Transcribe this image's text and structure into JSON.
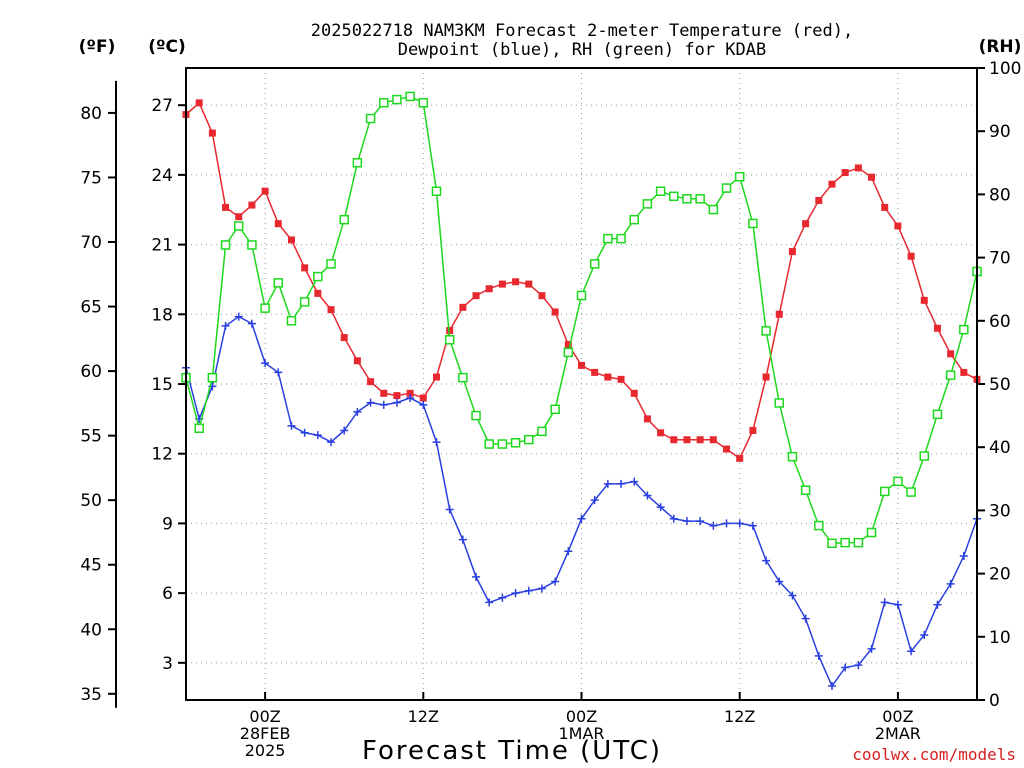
{
  "title_line1": "2025022718 NAM3KM Forecast 2-meter Temperature (red),",
  "title_line2": "Dewpoint (blue), RH (green) for KDAB",
  "unit_f": "(ºF)",
  "unit_c": "(ºC)",
  "unit_rh": "(RH)",
  "credit": "coolwx.com/models",
  "colors": {
    "temp": "#e8282f",
    "dewpoint": "#2a3fe0",
    "rh": "#1ed81e",
    "axis": "#000000",
    "grid": "#9a9a9a"
  },
  "chart_data": {
    "type": "line",
    "xlabel": "Forecast Time (UTC)",
    "x_ticks": [
      {
        "hour": 6,
        "lines": [
          "00Z",
          "28FEB",
          "2025"
        ]
      },
      {
        "hour": 18,
        "lines": [
          "12Z"
        ]
      },
      {
        "hour": 30,
        "lines": [
          "00Z",
          "1MAR"
        ]
      },
      {
        "hour": 42,
        "lines": [
          "12Z"
        ]
      },
      {
        "hour": 54,
        "lines": [
          "00Z",
          "2MAR"
        ]
      }
    ],
    "x_hours": [
      0,
      1,
      2,
      3,
      4,
      5,
      6,
      7,
      8,
      9,
      10,
      11,
      12,
      13,
      14,
      15,
      16,
      17,
      18,
      19,
      20,
      21,
      22,
      23,
      24,
      25,
      26,
      27,
      28,
      29,
      30,
      31,
      32,
      33,
      34,
      35,
      36,
      37,
      38,
      39,
      40,
      41,
      42,
      43,
      44,
      45,
      46,
      47,
      48,
      49,
      50,
      51,
      52,
      53,
      54,
      55,
      56,
      57,
      58,
      59,
      60
    ],
    "xlim": [
      0,
      60
    ],
    "left_axis_c": {
      "ylim": [
        1.4,
        28.6
      ],
      "ticks": [
        3,
        6,
        9,
        12,
        15,
        18,
        21,
        24,
        27
      ]
    },
    "left_axis_f": {
      "ticks": [
        35,
        40,
        45,
        50,
        55,
        60,
        65,
        70,
        75,
        80
      ]
    },
    "right_axis_rh": {
      "ylim": [
        0,
        100
      ],
      "ticks": [
        0,
        10,
        20,
        30,
        40,
        50,
        60,
        70,
        80,
        90,
        100
      ]
    },
    "grid": true,
    "series": [
      {
        "name": "Temperature",
        "axis": "celsius",
        "marker": "filled-square",
        "values": [
          26.6,
          27.1,
          25.8,
          22.6,
          22.2,
          22.7,
          23.3,
          21.9,
          21.2,
          20.0,
          18.9,
          18.2,
          17.0,
          16.0,
          15.1,
          14.6,
          14.5,
          14.6,
          14.4,
          15.3,
          17.3,
          18.3,
          18.8,
          19.1,
          19.3,
          19.4,
          19.3,
          18.8,
          18.1,
          16.7,
          15.8,
          15.5,
          15.3,
          15.2,
          14.6,
          13.5,
          12.9,
          12.6,
          12.6,
          12.6,
          12.6,
          12.2,
          11.8,
          13.0,
          15.3,
          18.0,
          20.7,
          21.9,
          22.9,
          23.6,
          24.1,
          24.3,
          23.9,
          22.6,
          21.8,
          20.5,
          18.6,
          17.4,
          16.3,
          15.5,
          15.2
        ]
      },
      {
        "name": "Dewpoint",
        "axis": "celsius",
        "marker": "plus",
        "values": [
          15.7,
          13.5,
          14.9,
          17.5,
          17.9,
          17.6,
          15.9,
          15.5,
          13.2,
          12.9,
          12.8,
          12.5,
          13.0,
          13.8,
          14.2,
          14.1,
          14.2,
          14.4,
          14.1,
          12.5,
          9.6,
          8.3,
          6.7,
          5.6,
          5.8,
          6.0,
          6.1,
          6.2,
          6.5,
          7.8,
          9.2,
          10.0,
          10.7,
          10.7,
          10.8,
          10.2,
          9.7,
          9.2,
          9.1,
          9.1,
          8.9,
          9.0,
          9.0,
          8.9,
          7.4,
          6.5,
          5.9,
          4.9,
          3.3,
          2.0,
          2.8,
          2.9,
          3.6,
          5.6,
          5.5,
          3.5,
          4.2,
          5.5,
          6.4,
          7.6,
          9.2
        ]
      },
      {
        "name": "RH",
        "axis": "rh",
        "marker": "open-square",
        "values": [
          51,
          43,
          51,
          72,
          75,
          72,
          62,
          66,
          60,
          63,
          67,
          69,
          76,
          85,
          92,
          94.5,
          95,
          95.5,
          94.5,
          80.5,
          57,
          51,
          45,
          40.5,
          40.5,
          40.7,
          41.2,
          42.5,
          46,
          55,
          64,
          69,
          73,
          73,
          76,
          78.5,
          80.5,
          79.7,
          79.3,
          79.3,
          77.6,
          81,
          82.8,
          75.4,
          58.4,
          47,
          38.5,
          33.2,
          27.6,
          24.8,
          24.9,
          24.9,
          26.5,
          33,
          34.6,
          32.9,
          38.6,
          45.2,
          51.4,
          58.6,
          67.8
        ]
      }
    ]
  }
}
